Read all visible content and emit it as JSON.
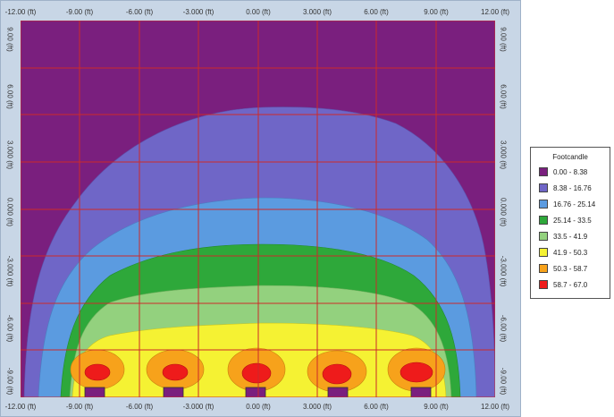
{
  "axes": {
    "x_ticks": [
      "-12.00 (ft)",
      "-9.00 (ft)",
      "-6.00 (ft)",
      "-3.000 (ft)",
      "0.00 (ft)",
      "3.000 (ft)",
      "6.00 (ft)",
      "9.00 (ft)",
      "12.00 (ft)"
    ],
    "y_ticks": [
      "9.00 (ft)",
      "6.00 (ft)",
      "3.000 (ft)",
      "0.000 (ft)",
      "-3.000 (ft)",
      "-6.00 (ft)",
      "-9.00 (ft)"
    ]
  },
  "legend": {
    "title": "Footcandle",
    "items": [
      {
        "label": "0.00 - 8.38",
        "color": "#7a1f7e"
      },
      {
        "label": "8.38 - 16.76",
        "color": "#6f66c7"
      },
      {
        "label": "16.76 - 25.14",
        "color": "#5b9be0"
      },
      {
        "label": "25.14 - 33.5",
        "color": "#2ea83a"
      },
      {
        "label": "33.5 - 41.9",
        "color": "#93d17e"
      },
      {
        "label": "41.9 - 50.3",
        "color": "#f5f233"
      },
      {
        "label": "50.3 - 58.7",
        "color": "#f7a21b"
      },
      {
        "label": "58.7 - 67.0",
        "color": "#ee1b1b"
      }
    ]
  },
  "grid_color": "#cc2a2a",
  "fixture_color": "#7a1f7e"
}
